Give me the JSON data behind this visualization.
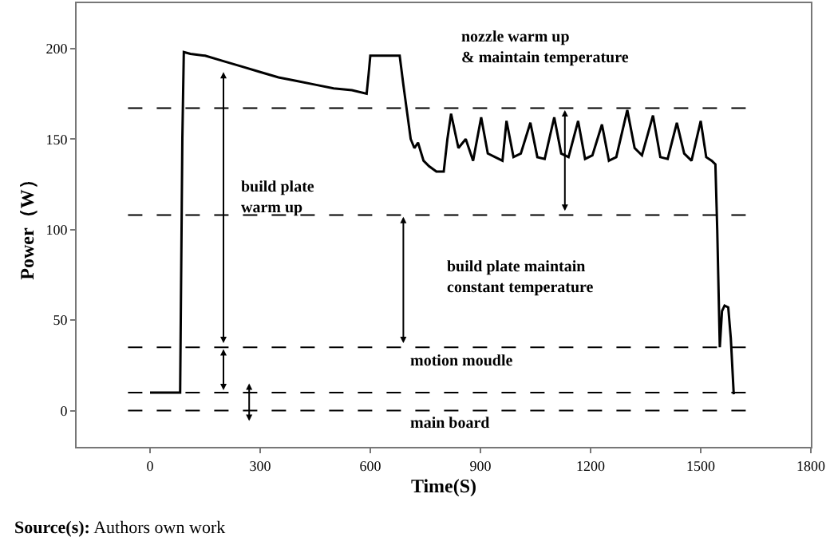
{
  "chart_data": {
    "type": "line",
    "xlabel": "Time(S)",
    "ylabel": "Power（W）",
    "xlim": [
      -200,
      1800
    ],
    "xticks": [
      0,
      300,
      600,
      900,
      1200,
      1500,
      1800
    ],
    "ylim": [
      -20,
      225
    ],
    "yticks": [
      0,
      50,
      100,
      150,
      200
    ],
    "legend": false,
    "marker": "none",
    "line_style": "solid",
    "series": [
      {
        "color": "#000000",
        "x": [
          0,
          40,
          82,
          88,
          92,
          110,
          150,
          200,
          250,
          300,
          350,
          400,
          450,
          500,
          550,
          590,
          595,
          600,
          640,
          680,
          690,
          700,
          710,
          720,
          730,
          745,
          760,
          780,
          800,
          810,
          820,
          840,
          860,
          880,
          902,
          920,
          940,
          960,
          971,
          990,
          1010,
          1036,
          1055,
          1075,
          1101,
          1120,
          1140,
          1166,
          1185,
          1205,
          1231,
          1250,
          1270,
          1300,
          1320,
          1340,
          1370,
          1390,
          1410,
          1435,
          1455,
          1475,
          1500,
          1515,
          1530,
          1540,
          1545,
          1552,
          1558,
          1565,
          1575,
          1582,
          1590
        ],
        "values": [
          10,
          10,
          10,
          150,
          198,
          197,
          196,
          193,
          190,
          187,
          184,
          182,
          180,
          178,
          177,
          175,
          185,
          196,
          196,
          196,
          180,
          165,
          150,
          145,
          148,
          138,
          135,
          132,
          132,
          150,
          164,
          145,
          150,
          138,
          162,
          142,
          140,
          138,
          160,
          140,
          142,
          159,
          140,
          139,
          162,
          142,
          140,
          160,
          139,
          141,
          158,
          138,
          140,
          166,
          145,
          141,
          163,
          140,
          139,
          159,
          142,
          138,
          160,
          140,
          138,
          136,
          100,
          35,
          55,
          58,
          57,
          40,
          9
        ]
      }
    ],
    "ref_lines": [
      {
        "axis": "y",
        "value": 0,
        "color": "#000000",
        "line_style": "dashed"
      },
      {
        "axis": "y",
        "value": 10,
        "color": "#000000",
        "line_style": "dashed"
      },
      {
        "axis": "y",
        "value": 35,
        "color": "#000000",
        "line_style": "dashed"
      },
      {
        "axis": "y",
        "value": 108,
        "color": "#000000",
        "line_style": "dashed"
      },
      {
        "axis": "y",
        "value": 167,
        "color": "#000000",
        "line_style": "dashed"
      }
    ],
    "annotations": [
      "build plate\nwarm up",
      "nozzle warm up\n& maintain temperature",
      "build plate maintain\nconstant temperature",
      "motion moudle",
      "main board",
      "Source(s): Authors own work"
    ]
  }
}
